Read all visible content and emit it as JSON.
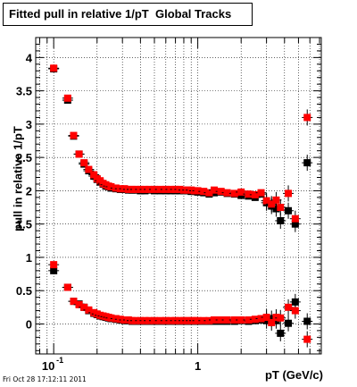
{
  "header": {
    "title": "Fitted pull in relative 1/pT  Global Tracks"
  },
  "footer": {
    "timestamp": "Fri Oct 28 17:12:11 2011"
  },
  "colors": {
    "series_black": "#000000",
    "series_red": "#ff0000",
    "grid": "#000000"
  },
  "chart_data": {
    "type": "scatter",
    "title": "Fitted pull in relative 1/pT  Global Tracks",
    "xlabel": "pT (GeV/c)",
    "ylabel": "pull in relative 1/pT",
    "x_scale": "log",
    "xlim": [
      0.075,
      7.2
    ],
    "ylim": [
      -0.45,
      4.3
    ],
    "grid": true,
    "y_ticks": [
      0,
      0.5,
      1,
      1.5,
      2,
      2.5,
      3,
      3.5,
      4
    ],
    "y_tick_labels": [
      "0",
      "0.5",
      "1",
      "1.5",
      "2",
      "2.5",
      "3",
      "3.5",
      "4"
    ],
    "x_tick_labels": [
      {
        "value": 0.1,
        "label": "10",
        "exp": "-1"
      },
      {
        "value": 1,
        "label": "1",
        "exp": ""
      }
    ],
    "series": [
      {
        "color": "black",
        "points": [
          [
            0.1,
            3.83
          ],
          [
            0.125,
            3.36
          ],
          [
            0.1375,
            2.82
          ],
          [
            0.15,
            2.55
          ],
          [
            0.1625,
            2.4
          ],
          [
            0.175,
            2.3
          ],
          [
            0.19,
            2.22
          ],
          [
            0.2,
            2.17
          ],
          [
            0.21,
            2.13
          ],
          [
            0.22,
            2.1
          ],
          [
            0.23,
            2.07
          ],
          [
            0.24,
            2.06
          ],
          [
            0.25,
            2.04
          ],
          [
            0.27,
            2.03
          ],
          [
            0.29,
            2.02
          ],
          [
            0.31,
            2.02
          ],
          [
            0.33,
            2.01
          ],
          [
            0.35,
            2.01
          ],
          [
            0.37,
            2.01
          ],
          [
            0.4,
            2.0
          ],
          [
            0.43,
            2.0
          ],
          [
            0.46,
            2.01
          ],
          [
            0.5,
            2.0
          ],
          [
            0.55,
            2.0
          ],
          [
            0.6,
            2.0
          ],
          [
            0.65,
            2.0
          ],
          [
            0.7,
            2.0
          ],
          [
            0.75,
            2.0
          ],
          [
            0.8,
            2.0
          ],
          [
            0.85,
            2.0
          ],
          [
            0.9,
            1.99
          ],
          [
            0.95,
            1.99
          ],
          [
            1.0,
            1.98
          ],
          [
            1.1,
            1.97
          ],
          [
            1.2,
            1.95
          ],
          [
            1.3,
            1.97
          ],
          [
            1.45,
            1.98
          ],
          [
            1.6,
            1.96
          ],
          [
            1.8,
            1.95
          ],
          [
            2.0,
            1.93
          ],
          [
            2.25,
            1.92
          ],
          [
            2.5,
            1.9
          ],
          [
            2.75,
            1.95
          ],
          [
            3.0,
            1.82
          ],
          [
            3.25,
            1.77
          ],
          [
            3.5,
            1.73
          ],
          [
            3.75,
            1.55
          ],
          [
            4.25,
            1.7
          ],
          [
            4.75,
            1.5
          ],
          [
            5.75,
            2.42
          ],
          [
            0.1,
            0.8
          ],
          [
            0.125,
            0.55
          ],
          [
            0.1375,
            0.34
          ],
          [
            0.15,
            0.3
          ],
          [
            0.1625,
            0.25
          ],
          [
            0.175,
            0.2
          ],
          [
            0.19,
            0.16
          ],
          [
            0.2,
            0.14
          ],
          [
            0.21,
            0.12
          ],
          [
            0.22,
            0.11
          ],
          [
            0.23,
            0.1
          ],
          [
            0.24,
            0.09
          ],
          [
            0.25,
            0.08
          ],
          [
            0.27,
            0.07
          ],
          [
            0.29,
            0.06
          ],
          [
            0.31,
            0.05
          ],
          [
            0.33,
            0.05
          ],
          [
            0.35,
            0.04
          ],
          [
            0.37,
            0.04
          ],
          [
            0.4,
            0.04
          ],
          [
            0.43,
            0.04
          ],
          [
            0.46,
            0.04
          ],
          [
            0.5,
            0.04
          ],
          [
            0.55,
            0.04
          ],
          [
            0.6,
            0.04
          ],
          [
            0.65,
            0.04
          ],
          [
            0.7,
            0.04
          ],
          [
            0.75,
            0.04
          ],
          [
            0.8,
            0.04
          ],
          [
            0.85,
            0.04
          ],
          [
            0.9,
            0.04
          ],
          [
            0.95,
            0.04
          ],
          [
            1.0,
            0.04
          ],
          [
            1.1,
            0.04
          ],
          [
            1.2,
            0.04
          ],
          [
            1.3,
            0.04
          ],
          [
            1.45,
            0.04
          ],
          [
            1.6,
            0.04
          ],
          [
            1.8,
            0.04
          ],
          [
            2.0,
            0.05
          ],
          [
            2.25,
            0.04
          ],
          [
            2.5,
            0.05
          ],
          [
            2.75,
            0.06
          ],
          [
            3.0,
            0.05
          ],
          [
            3.25,
            0.08
          ],
          [
            3.5,
            0.05
          ],
          [
            3.75,
            -0.14
          ],
          [
            4.25,
            0.01
          ],
          [
            4.75,
            0.33
          ],
          [
            5.75,
            0.04
          ]
        ]
      },
      {
        "color": "red",
        "points": [
          [
            0.1,
            3.84
          ],
          [
            0.125,
            3.39
          ],
          [
            0.1375,
            2.83
          ],
          [
            0.15,
            2.55
          ],
          [
            0.1625,
            2.42
          ],
          [
            0.175,
            2.32
          ],
          [
            0.19,
            2.24
          ],
          [
            0.2,
            2.18
          ],
          [
            0.21,
            2.15
          ],
          [
            0.22,
            2.11
          ],
          [
            0.23,
            2.09
          ],
          [
            0.24,
            2.07
          ],
          [
            0.25,
            2.06
          ],
          [
            0.27,
            2.04
          ],
          [
            0.29,
            2.03
          ],
          [
            0.31,
            2.03
          ],
          [
            0.33,
            2.02
          ],
          [
            0.35,
            2.02
          ],
          [
            0.37,
            2.02
          ],
          [
            0.4,
            2.02
          ],
          [
            0.43,
            2.02
          ],
          [
            0.46,
            2.02
          ],
          [
            0.5,
            2.02
          ],
          [
            0.55,
            2.02
          ],
          [
            0.6,
            2.02
          ],
          [
            0.65,
            2.02
          ],
          [
            0.7,
            2.02
          ],
          [
            0.75,
            2.02
          ],
          [
            0.8,
            2.01
          ],
          [
            0.85,
            2.01
          ],
          [
            0.9,
            2.01
          ],
          [
            0.95,
            2.0
          ],
          [
            1.0,
            2.0
          ],
          [
            1.1,
            1.99
          ],
          [
            1.2,
            1.97
          ],
          [
            1.3,
            2.01
          ],
          [
            1.45,
            1.99
          ],
          [
            1.6,
            1.97
          ],
          [
            1.8,
            1.96
          ],
          [
            2.0,
            1.98
          ],
          [
            2.25,
            1.95
          ],
          [
            2.5,
            1.94
          ],
          [
            2.75,
            1.97
          ],
          [
            3.0,
            1.85
          ],
          [
            3.25,
            1.8
          ],
          [
            3.5,
            1.86
          ],
          [
            3.75,
            1.75
          ],
          [
            4.25,
            1.96
          ],
          [
            4.75,
            1.58
          ],
          [
            5.75,
            3.1
          ],
          [
            0.1,
            0.89
          ],
          [
            0.125,
            0.55
          ],
          [
            0.1375,
            0.34
          ],
          [
            0.15,
            0.29
          ],
          [
            0.1625,
            0.25
          ],
          [
            0.175,
            0.21
          ],
          [
            0.19,
            0.17
          ],
          [
            0.2,
            0.15
          ],
          [
            0.21,
            0.13
          ],
          [
            0.22,
            0.12
          ],
          [
            0.23,
            0.11
          ],
          [
            0.24,
            0.1
          ],
          [
            0.25,
            0.09
          ],
          [
            0.27,
            0.08
          ],
          [
            0.29,
            0.07
          ],
          [
            0.31,
            0.06
          ],
          [
            0.33,
            0.06
          ],
          [
            0.35,
            0.05
          ],
          [
            0.37,
            0.05
          ],
          [
            0.4,
            0.05
          ],
          [
            0.43,
            0.05
          ],
          [
            0.46,
            0.05
          ],
          [
            0.5,
            0.05
          ],
          [
            0.55,
            0.05
          ],
          [
            0.6,
            0.05
          ],
          [
            0.65,
            0.05
          ],
          [
            0.7,
            0.05
          ],
          [
            0.75,
            0.05
          ],
          [
            0.8,
            0.05
          ],
          [
            0.85,
            0.05
          ],
          [
            0.9,
            0.05
          ],
          [
            0.95,
            0.05
          ],
          [
            1.0,
            0.05
          ],
          [
            1.1,
            0.05
          ],
          [
            1.2,
            0.05
          ],
          [
            1.3,
            0.06
          ],
          [
            1.45,
            0.06
          ],
          [
            1.6,
            0.06
          ],
          [
            1.8,
            0.06
          ],
          [
            2.0,
            0.06
          ],
          [
            2.25,
            0.06
          ],
          [
            2.5,
            0.07
          ],
          [
            2.75,
            0.08
          ],
          [
            3.0,
            0.1
          ],
          [
            3.25,
            0.02
          ],
          [
            3.5,
            0.1
          ],
          [
            3.75,
            0.09
          ],
          [
            4.25,
            0.25
          ],
          [
            4.75,
            0.2
          ],
          [
            5.75,
            -0.23
          ]
        ]
      }
    ]
  }
}
